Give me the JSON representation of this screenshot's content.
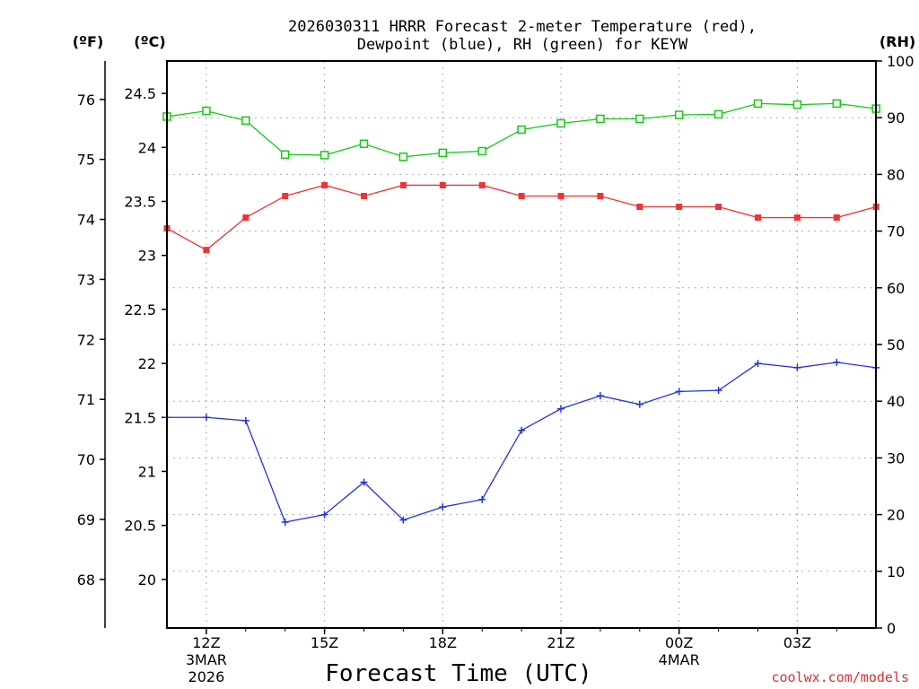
{
  "chart_data": {
    "type": "line",
    "title_line1": "2026030311 HRRR Forecast 2-meter Temperature (red),",
    "title_line2": "Dewpoint (blue), RH (green) for KEYW",
    "xlabel": "Forecast Time (UTC)",
    "credit": "coolwx.com/models",
    "units": {
      "f": "(ºF)",
      "c": "(ºC)",
      "rh": "(RH)"
    },
    "x": [
      "11Z",
      "12Z",
      "13Z",
      "14Z",
      "15Z",
      "16Z",
      "17Z",
      "18Z",
      "19Z",
      "20Z",
      "21Z",
      "22Z",
      "23Z",
      "00Z",
      "01Z",
      "02Z",
      "03Z",
      "04Z",
      "05Z"
    ],
    "xticks": [
      {
        "label": "12Z",
        "sub1": "3MAR",
        "sub2": "2026",
        "index": 1
      },
      {
        "label": "15Z",
        "sub1": "",
        "sub2": "",
        "index": 4
      },
      {
        "label": "18Z",
        "sub1": "",
        "sub2": "",
        "index": 7
      },
      {
        "label": "21Z",
        "sub1": "",
        "sub2": "",
        "index": 10
      },
      {
        "label": "00Z",
        "sub1": "4MAR",
        "sub2": "",
        "index": 13
      },
      {
        "label": "03Z",
        "sub1": "",
        "sub2": "",
        "index": 16
      }
    ],
    "left_axis_c": {
      "ticks": [
        "20",
        "20.5",
        "21",
        "21.5",
        "22",
        "22.5",
        "23",
        "23.5",
        "24",
        "24.5"
      ],
      "ylim": [
        19.55,
        24.8
      ]
    },
    "left_axis_f": {
      "ticks": [
        "68",
        "69",
        "70",
        "71",
        "72",
        "73",
        "74",
        "75",
        "76"
      ]
    },
    "right_axis_rh": {
      "ticks": [
        "0",
        "10",
        "20",
        "30",
        "40",
        "50",
        "60",
        "70",
        "80",
        "90",
        "100"
      ],
      "ylim": [
        0,
        100
      ]
    },
    "series": [
      {
        "name": "Temperature",
        "axis": "c",
        "color": "#ee3333",
        "marker": "filled-square",
        "values": [
          23.25,
          23.05,
          23.35,
          23.55,
          23.65,
          23.55,
          23.65,
          23.65,
          23.65,
          23.55,
          23.55,
          23.55,
          23.45,
          23.45,
          23.45,
          23.35,
          23.35,
          23.35,
          23.45
        ]
      },
      {
        "name": "Dewpoint",
        "axis": "c",
        "color": "#2233dd",
        "marker": "plus",
        "values": [
          21.5,
          21.5,
          21.47,
          20.53,
          20.6,
          20.9,
          20.55,
          20.67,
          20.74,
          21.38,
          21.58,
          21.7,
          21.62,
          21.74,
          21.75,
          22.0,
          21.96,
          22.01,
          21.96
        ]
      },
      {
        "name": "RH",
        "axis": "rh",
        "color": "#11cc11",
        "marker": "open-square",
        "values": [
          90.2,
          91.2,
          89.5,
          83.5,
          83.4,
          85.4,
          83.1,
          83.8,
          84.1,
          87.9,
          89.0,
          89.8,
          89.8,
          90.5,
          90.6,
          92.5,
          92.3,
          92.5,
          91.6
        ]
      }
    ]
  }
}
